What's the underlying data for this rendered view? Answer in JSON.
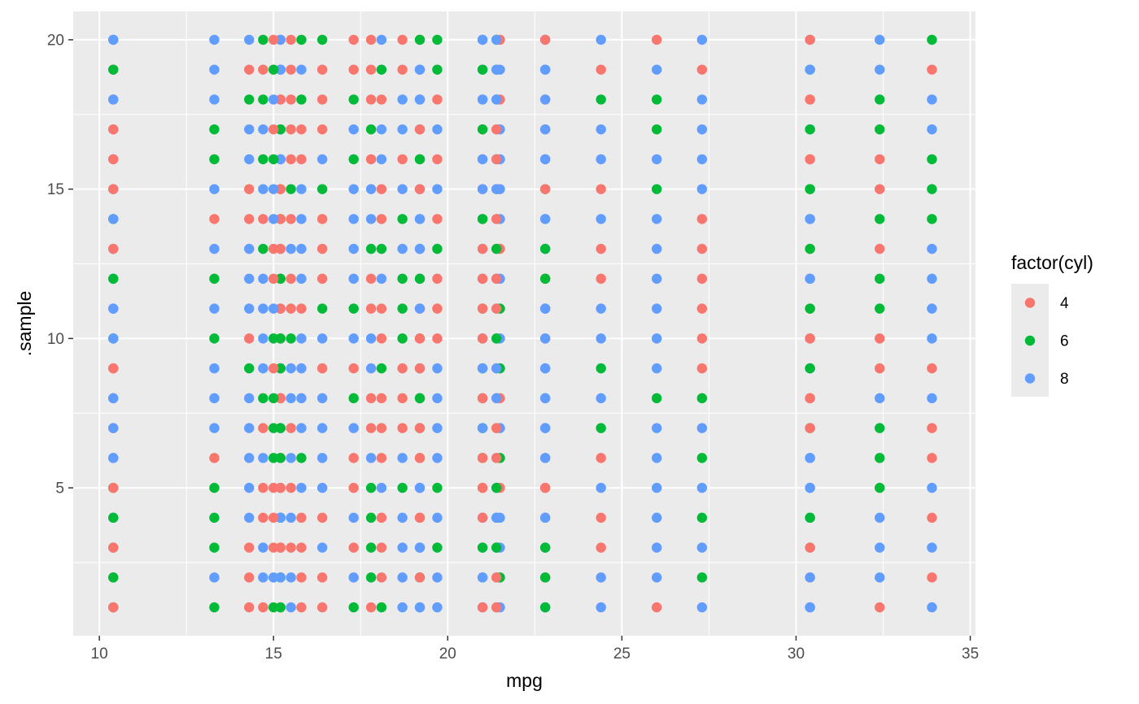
{
  "chart_data": {
    "type": "scatter",
    "xlabel": "mpg",
    "ylabel": ".sample",
    "xlim": [
      9.25,
      35.15
    ],
    "ylim": [
      0.05,
      20.95
    ],
    "x_ticks": [
      10,
      15,
      20,
      25,
      30,
      35
    ],
    "y_ticks": [
      5,
      10,
      15,
      20
    ],
    "grid": true,
    "legend": {
      "title": "factor(cyl)",
      "position": "right",
      "items": [
        {
          "label": "4",
          "color": "#F8766D"
        },
        {
          "label": "6",
          "color": "#00BA38"
        },
        {
          "label": "8",
          "color": "#619CFF"
        }
      ]
    },
    "mpg_values": [
      21.0,
      21.0,
      22.8,
      21.4,
      18.7,
      18.1,
      14.3,
      24.4,
      22.8,
      19.2,
      17.8,
      16.4,
      17.3,
      15.2,
      10.4,
      10.4,
      14.7,
      32.4,
      30.4,
      33.9,
      21.5,
      15.5,
      15.2,
      13.3,
      19.2,
      27.3,
      26.0,
      30.4,
      15.8,
      19.7,
      15.0,
      21.4
    ],
    "cyl_values": [
      6,
      6,
      4,
      6,
      8,
      6,
      8,
      4,
      4,
      6,
      6,
      8,
      8,
      8,
      8,
      8,
      8,
      4,
      4,
      4,
      4,
      8,
      8,
      8,
      8,
      4,
      4,
      4,
      8,
      6,
      8,
      4
    ],
    "sample_count": 20
  }
}
